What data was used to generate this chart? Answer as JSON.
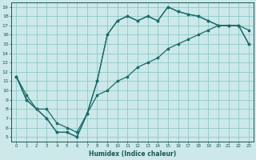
{
  "xlabel": "Humidex (Indice chaleur)",
  "bg_color": "#cce8e8",
  "grid_color": "#8fc8c8",
  "line_color": "#1a6b6b",
  "xlim": [
    -0.5,
    23.5
  ],
  "ylim": [
    4.5,
    19.5
  ],
  "xticks": [
    0,
    1,
    2,
    3,
    4,
    5,
    6,
    7,
    8,
    9,
    10,
    11,
    12,
    13,
    14,
    15,
    16,
    17,
    18,
    19,
    20,
    21,
    22,
    23
  ],
  "yticks": [
    5,
    6,
    7,
    8,
    9,
    10,
    11,
    12,
    13,
    14,
    15,
    16,
    17,
    18,
    19
  ],
  "line1_x": [
    0,
    1,
    2,
    3,
    4,
    5,
    6,
    7,
    8,
    9,
    10,
    11,
    12,
    13,
    14,
    15,
    16,
    17,
    18,
    19,
    20,
    21,
    22,
    23
  ],
  "line1_y": [
    11.5,
    9.0,
    8.0,
    7.0,
    5.5,
    5.5,
    5.0,
    7.5,
    11.0,
    16.0,
    17.5,
    18.0,
    17.5,
    18.0,
    17.5,
    19.0,
    18.5,
    18.2,
    18.0,
    17.5,
    17.0,
    17.0,
    17.0,
    16.5
  ],
  "line2_x": [
    0,
    1,
    2,
    3,
    4,
    5,
    6,
    7,
    8,
    9,
    10,
    11,
    12,
    13,
    14,
    15,
    16,
    17,
    18,
    19,
    20,
    21,
    22,
    23
  ],
  "line2_y": [
    11.5,
    9.0,
    8.0,
    7.0,
    5.5,
    5.5,
    5.0,
    7.5,
    11.0,
    16.0,
    17.5,
    18.0,
    17.5,
    18.0,
    17.5,
    19.0,
    18.5,
    18.2,
    18.0,
    17.5,
    17.0,
    17.0,
    17.0,
    15.0
  ],
  "line3_x": [
    0,
    1,
    2,
    3,
    4,
    5,
    6,
    7,
    8,
    9,
    10,
    11,
    12,
    13,
    14,
    15,
    16,
    17,
    18,
    19,
    20,
    21,
    22,
    23
  ],
  "line3_y": [
    11.5,
    9.5,
    8.0,
    8.0,
    6.5,
    6.0,
    5.5,
    7.5,
    9.5,
    10.0,
    11.0,
    11.5,
    12.5,
    13.0,
    13.5,
    14.5,
    15.0,
    15.5,
    16.0,
    16.5,
    17.0,
    17.0,
    17.0,
    15.0
  ]
}
